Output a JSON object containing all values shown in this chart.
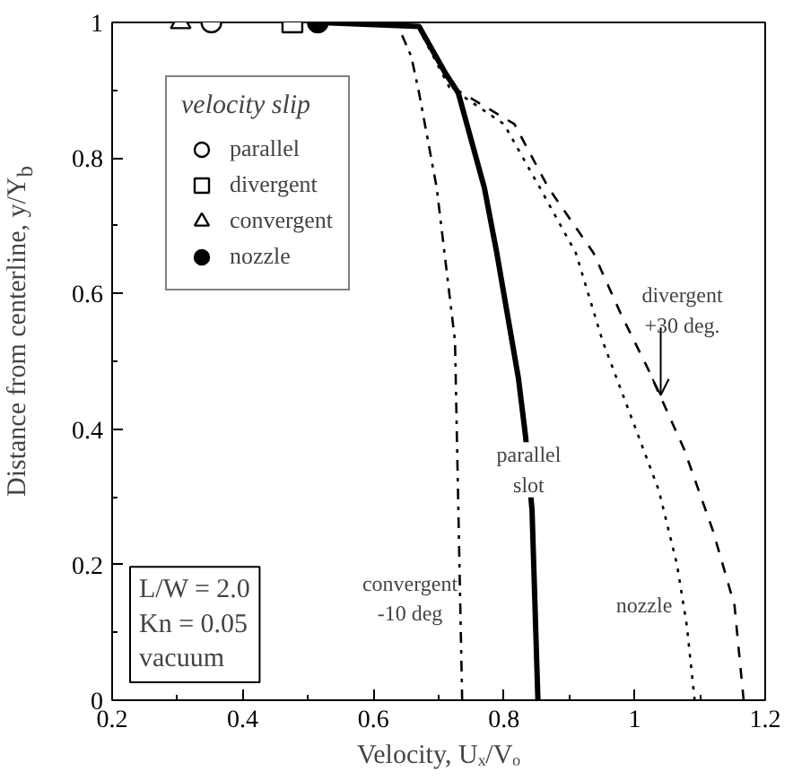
{
  "chart_data": {
    "type": "line",
    "xlabel": "Velocity, Uₓ/Vₒ",
    "ylabel": "Distance from centerline, y/Y$_{b}$",
    "legend_title": "velocity slip",
    "legend": "top left",
    "grid": false,
    "xlim": [
      0.2,
      1.2
    ],
    "xticks": [
      0.2,
      0.4,
      0.6,
      0.8,
      1,
      1.2
    ],
    "ylim": [
      0,
      1
    ],
    "yticks": [
      0,
      0.2,
      0.4,
      0.6,
      0.8,
      1
    ],
    "series": [
      {
        "line_style": "solid",
        "color": "#000000",
        "x": [
          0.852,
          0.843,
          0.833,
          0.822,
          0.789,
          0.77,
          0.73,
          0.711,
          0.67,
          0.515
        ],
        "values": [
          0,
          0.28,
          0.39,
          0.476,
          0.66,
          0.756,
          0.896,
          0.924,
          0.994,
          1
        ]
      },
      {
        "line_style": "dashdot",
        "color": "#000000",
        "x": [
          0.736,
          0.725,
          0.697,
          0.67,
          0.658,
          0.64
        ],
        "values": [
          0,
          0.53,
          0.756,
          0.896,
          0.95,
          0.99
        ]
      },
      {
        "line_style": "dotted",
        "color": "#000000",
        "x": [
          1.092,
          1.08,
          1.065,
          1.037,
          0.951,
          0.91,
          0.855,
          0.8,
          0.716,
          0.67
        ],
        "values": [
          0,
          0.11,
          0.2,
          0.31,
          0.53,
          0.66,
          0.756,
          0.85,
          0.905,
          0.99
        ]
      },
      {
        "line_style": "dashed",
        "color": "#000000",
        "x": [
          1.167,
          1.153,
          1.12,
          1.076,
          1.02,
          0.979,
          0.937,
          0.868,
          0.816,
          0.72,
          0.67
        ],
        "values": [
          0,
          0.14,
          0.25,
          0.37,
          0.49,
          0.57,
          0.66,
          0.756,
          0.85,
          0.905,
          0.99
        ]
      },
      {
        "type": "scatter",
        "name": "parallel",
        "marker": "circle",
        "color": "#ffffff",
        "x": [
          0.352
        ],
        "values": [
          1
        ]
      },
      {
        "type": "scatter",
        "name": "divergent",
        "marker": "square",
        "color": "#ffffff",
        "x": [
          0.476
        ],
        "values": [
          1
        ]
      },
      {
        "type": "scatter",
        "name": "convergent",
        "marker": "triangle",
        "color": "#ffffff",
        "x": [
          0.305
        ],
        "values": [
          1
        ]
      },
      {
        "type": "scatter",
        "name": "nozzle",
        "marker": "circle",
        "color": "#000000",
        "x": [
          0.515
        ],
        "values": [
          1
        ]
      }
    ],
    "annotations": [
      "L/W = 2.0\nKn = 0.05\nvacuum",
      {
        "text": "parallel\nslot",
        "x": 0.838,
        "y": 0.34
      },
      {
        "text": "convergent\n-10 deg",
        "x": 0.733,
        "y": 0.15
      },
      {
        "text": "divergent\n+30 deg.",
        "x": 1.04,
        "y": 0.45
      },
      {
        "text": "nozzle",
        "x": 1.075,
        "y": 0.14
      }
    ]
  }
}
